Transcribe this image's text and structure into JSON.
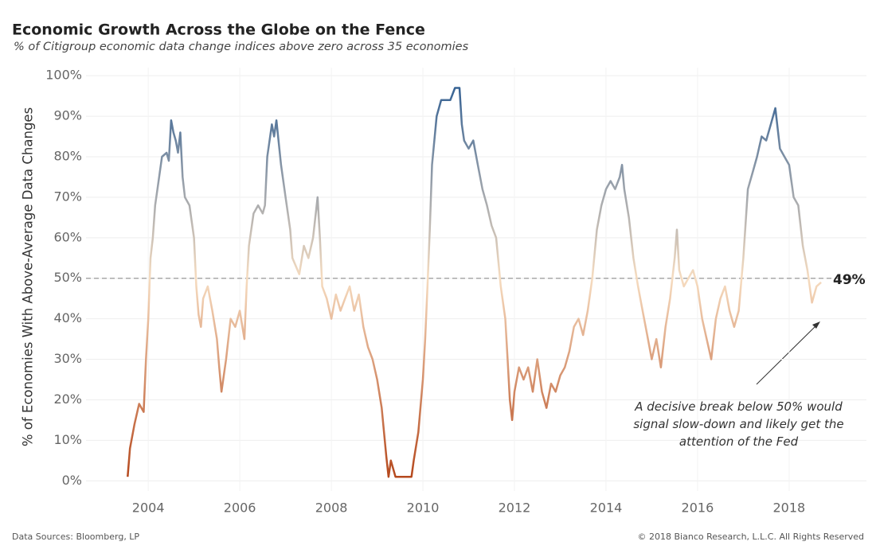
{
  "chart_data": {
    "type": "line",
    "title": "Economic Growth Across the Globe on the Fence",
    "subtitle": "% of Citigroup economic data change indices above zero across 35 economies",
    "y_label": "% of Economies With Above-Average Data Changes",
    "x": [
      2003.55,
      2003.6,
      2003.7,
      2003.8,
      2003.9,
      2003.95,
      2004.0,
      2004.05,
      2004.1,
      2004.15,
      2004.2,
      2004.3,
      2004.4,
      2004.45,
      2004.5,
      2004.55,
      2004.6,
      2004.65,
      2004.7,
      2004.75,
      2004.8,
      2004.9,
      2005.0,
      2005.05,
      2005.1,
      2005.15,
      2005.2,
      2005.3,
      2005.4,
      2005.5,
      2005.55,
      2005.6,
      2005.7,
      2005.8,
      2005.9,
      2006.0,
      2006.1,
      2006.15,
      2006.2,
      2006.3,
      2006.4,
      2006.5,
      2006.55,
      2006.6,
      2006.7,
      2006.75,
      2006.8,
      2006.9,
      2007.0,
      2007.1,
      2007.15,
      2007.3,
      2007.4,
      2007.5,
      2007.6,
      2007.7,
      2007.75,
      2007.8,
      2007.9,
      2008.0,
      2008.1,
      2008.2,
      2008.3,
      2008.4,
      2008.5,
      2008.6,
      2008.7,
      2008.8,
      2008.9,
      2009.0,
      2009.1,
      2009.15,
      2009.2,
      2009.25,
      2009.3,
      2009.4,
      2009.6,
      2009.75,
      2009.8,
      2009.9,
      2010.0,
      2010.05,
      2010.1,
      2010.15,
      2010.2,
      2010.3,
      2010.4,
      2010.6,
      2010.7,
      2010.8,
      2010.85,
      2010.9,
      2011.0,
      2011.1,
      2011.2,
      2011.3,
      2011.4,
      2011.5,
      2011.6,
      2011.7,
      2011.8,
      2011.85,
      2011.9,
      2011.95,
      2012.0,
      2012.1,
      2012.2,
      2012.3,
      2012.4,
      2012.5,
      2012.6,
      2012.7,
      2012.8,
      2012.9,
      2013.0,
      2013.1,
      2013.2,
      2013.3,
      2013.4,
      2013.5,
      2013.6,
      2013.7,
      2013.8,
      2013.9,
      2014.0,
      2014.1,
      2014.2,
      2014.3,
      2014.35,
      2014.4,
      2014.5,
      2014.6,
      2014.7,
      2014.8,
      2014.9,
      2015.0,
      2015.1,
      2015.2,
      2015.3,
      2015.4,
      2015.5,
      2015.55,
      2015.6,
      2015.7,
      2015.8,
      2015.9,
      2016.0,
      2016.1,
      2016.2,
      2016.3,
      2016.4,
      2016.5,
      2016.6,
      2016.7,
      2016.8,
      2016.9,
      2017.0,
      2017.1,
      2017.2,
      2017.3,
      2017.4,
      2017.5,
      2017.6,
      2017.7,
      2017.8,
      2017.9,
      2018.0,
      2018.1,
      2018.2,
      2018.3,
      2018.4,
      2018.5,
      2018.6,
      2018.7
    ],
    "values": [
      1,
      8,
      14,
      19,
      17,
      30,
      40,
      55,
      60,
      68,
      72,
      80,
      81,
      79,
      89,
      86,
      84,
      81,
      86,
      75,
      70,
      68,
      60,
      48,
      41,
      38,
      45,
      48,
      42,
      35,
      28,
      22,
      30,
      40,
      38,
      42,
      35,
      48,
      58,
      66,
      68,
      66,
      68,
      80,
      88,
      85,
      89,
      78,
      70,
      62,
      55,
      51,
      58,
      55,
      60,
      70,
      60,
      48,
      45,
      40,
      46,
      42,
      45,
      48,
      42,
      46,
      38,
      33,
      30,
      25,
      18,
      12,
      6,
      1,
      5,
      1,
      1,
      1,
      5,
      12,
      25,
      35,
      48,
      62,
      78,
      90,
      94,
      94,
      97,
      97,
      88,
      84,
      82,
      84,
      78,
      72,
      68,
      63,
      60,
      48,
      40,
      30,
      20,
      15,
      22,
      28,
      25,
      28,
      22,
      30,
      22,
      18,
      24,
      22,
      26,
      28,
      32,
      38,
      40,
      36,
      42,
      50,
      62,
      68,
      72,
      74,
      72,
      75,
      78,
      72,
      65,
      55,
      48,
      42,
      36,
      30,
      35,
      28,
      38,
      45,
      55,
      62,
      52,
      48,
      50,
      52,
      48,
      40,
      35,
      30,
      40,
      45,
      48,
      42,
      38,
      42,
      55,
      72,
      76,
      80,
      85,
      84,
      88,
      92,
      82,
      80,
      78,
      70,
      68,
      58,
      52,
      44,
      48,
      49
    ],
    "color_scale": {
      "low": "#b4461a",
      "mid": "#f6dcc0",
      "high": "#2b5b91"
    },
    "reference_line": 50,
    "xlim": [
      2002.64,
      2019.69
    ],
    "xticks": [
      2004,
      2006,
      2008,
      2010,
      2012,
      2014,
      2016,
      2018
    ],
    "ylim": [
      -2.5,
      102
    ],
    "yticks": [
      {
        "value": 0,
        "label": "0%"
      },
      {
        "value": 10,
        "label": "10%"
      },
      {
        "value": 20,
        "label": "20%"
      },
      {
        "value": 30,
        "label": "30%"
      },
      {
        "value": 40,
        "label": "40%"
      },
      {
        "value": 50,
        "label": "50%"
      },
      {
        "value": 60,
        "label": "60%"
      },
      {
        "value": 70,
        "label": "70%"
      },
      {
        "value": 80,
        "label": "80%"
      },
      {
        "value": 90,
        "label": "90%"
      },
      {
        "value": 100,
        "label": "100%"
      }
    ],
    "grid": true,
    "end_label": "49%",
    "annotation": "A decisive break below 50% would signal slow-down and likely get the attention of the Fed",
    "source": "Data Sources: Bloomberg, LP",
    "copyright": "© 2018 Bianco Research, L.L.C. All Rights Reserved"
  }
}
